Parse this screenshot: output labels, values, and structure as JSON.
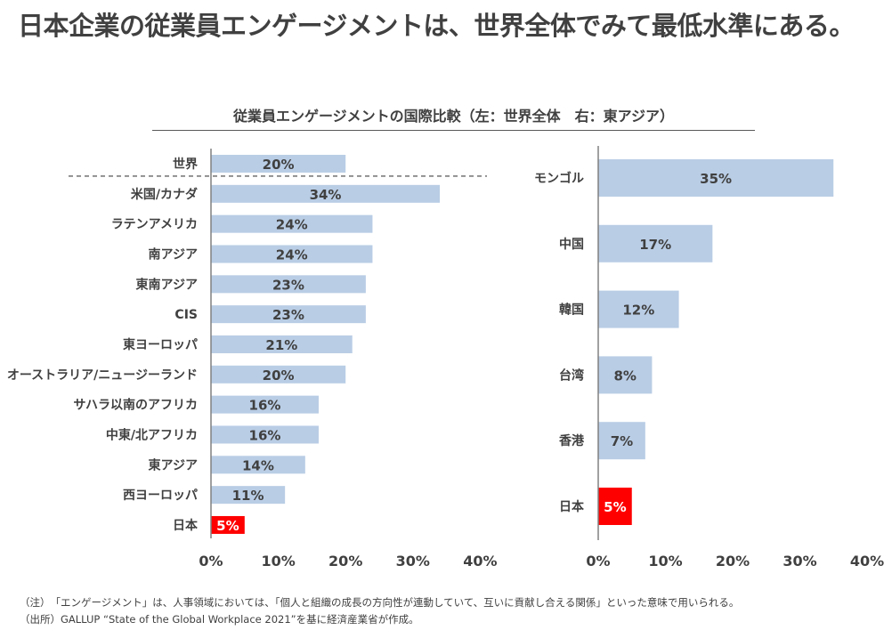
{
  "title": "日本企業の従業員エンゲージメントは、世界全体でみて最低水準にある。",
  "subtitle": "従業員エンゲージメントの国際比較（左：世界全体　右：東アジア）",
  "colors": {
    "bar": "#B9CDE5",
    "highlight": "#FF0000",
    "text": "#404040",
    "axis": "#808080"
  },
  "chart_data": [
    {
      "type": "bar",
      "orientation": "horizontal",
      "title": "世界全体",
      "categories": [
        "世界",
        "米国/カナダ",
        "ラテンアメリカ",
        "南アジア",
        "東南アジア",
        "CIS",
        "東ヨーロッパ",
        "オーストラリア/ニュージーランド",
        "サハラ以南のアフリカ",
        "中東/北アフリカ",
        "東アジア",
        "西ヨーロッパ",
        "日本"
      ],
      "values": [
        20,
        34,
        24,
        24,
        23,
        23,
        21,
        20,
        16,
        16,
        14,
        11,
        5
      ],
      "value_labels": [
        "20%",
        "34%",
        "24%",
        "24%",
        "23%",
        "23%",
        "21%",
        "20%",
        "16%",
        "16%",
        "14%",
        "11%",
        "5%"
      ],
      "highlight": [
        "日本"
      ],
      "separator_after": "世界",
      "xlabel": "",
      "ylabel": "",
      "xlim": [
        0,
        40
      ],
      "xticks": [
        "0%",
        "10%",
        "20%",
        "30%",
        "40%"
      ],
      "grid": false,
      "legend": "none"
    },
    {
      "type": "bar",
      "orientation": "horizontal",
      "title": "東アジア",
      "categories": [
        "モンゴル",
        "中国",
        "韓国",
        "台湾",
        "香港",
        "日本"
      ],
      "values": [
        35,
        17,
        12,
        8,
        7,
        5
      ],
      "value_labels": [
        "35%",
        "17%",
        "12%",
        "8%",
        "7%",
        "5%"
      ],
      "highlight": [
        "日本"
      ],
      "xlabel": "",
      "ylabel": "",
      "xlim": [
        0,
        40
      ],
      "xticks": [
        "0%",
        "10%",
        "20%",
        "30%",
        "40%"
      ],
      "grid": false,
      "legend": "none"
    }
  ],
  "notes": [
    "（注）　「エンゲージメント」は、人事領域においては、「個人と組織の成長の方向性が連動していて、互いに貢献し合える関係」といった意味で用いられる。",
    "（出所）GALLUP “State of the Global Workplace 2021”を基に経済産業省が作成。"
  ]
}
